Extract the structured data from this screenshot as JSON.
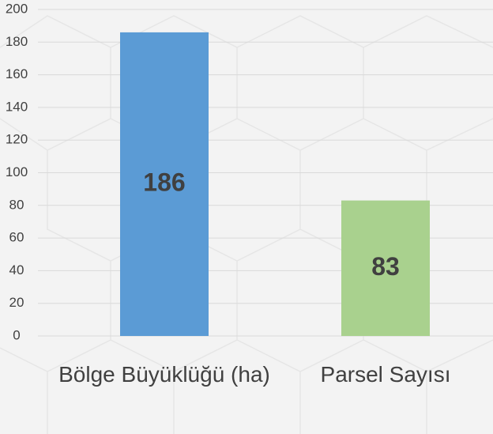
{
  "chart_data": {
    "type": "bar",
    "categories": [
      "Bölge Büyüklüğü (ha)",
      "Parsel Sayısı"
    ],
    "values": [
      186,
      83
    ],
    "colors": [
      "#5b9bd5",
      "#a9d18e"
    ],
    "ylim": [
      0,
      200
    ],
    "yticks": [
      0,
      20,
      40,
      60,
      80,
      100,
      120,
      140,
      160,
      180,
      200
    ],
    "grid": true
  }
}
